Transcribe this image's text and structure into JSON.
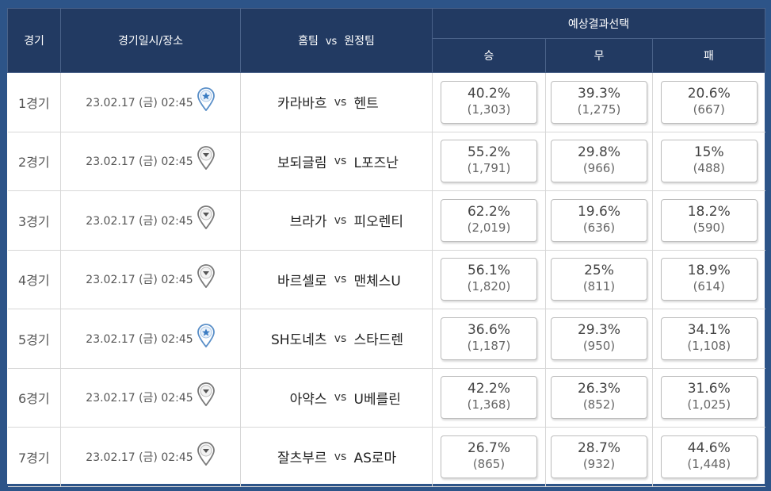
{
  "header": {
    "game": "경기",
    "datetime": "경기일시/장소",
    "home": "홈팀",
    "vs": "vs",
    "away": "원정팀",
    "prediction": "예상결과선택",
    "win": "승",
    "draw": "무",
    "loss": "패"
  },
  "colors": {
    "background": "#2d5488",
    "header_bg": "#223a62",
    "pin_active": "#4a8fd0",
    "pin_inactive": "#7a7a7a"
  },
  "rows": [
    {
      "game": "1경기",
      "datetime": "23.02.17 (금) 02:45",
      "pin": "location-star-pin-icon",
      "home": "카라바흐",
      "vs": "vs",
      "away": "헨트",
      "win": {
        "pct": "40.2%",
        "count": "(1,303)"
      },
      "draw": {
        "pct": "39.3%",
        "count": "(1,275)"
      },
      "loss": {
        "pct": "20.6%",
        "count": "(667)"
      }
    },
    {
      "game": "2경기",
      "datetime": "23.02.17 (금) 02:45",
      "pin": "location-pin-icon",
      "home": "보되글림",
      "vs": "vs",
      "away": "L포즈난",
      "win": {
        "pct": "55.2%",
        "count": "(1,791)"
      },
      "draw": {
        "pct": "29.8%",
        "count": "(966)"
      },
      "loss": {
        "pct": "15%",
        "count": "(488)"
      }
    },
    {
      "game": "3경기",
      "datetime": "23.02.17 (금) 02:45",
      "pin": "location-pin-icon",
      "home": "브라가",
      "vs": "vs",
      "away": "피오렌티",
      "win": {
        "pct": "62.2%",
        "count": "(2,019)"
      },
      "draw": {
        "pct": "19.6%",
        "count": "(636)"
      },
      "loss": {
        "pct": "18.2%",
        "count": "(590)"
      }
    },
    {
      "game": "4경기",
      "datetime": "23.02.17 (금) 02:45",
      "pin": "location-pin-icon",
      "home": "바르셀로",
      "vs": "vs",
      "away": "맨체스U",
      "win": {
        "pct": "56.1%",
        "count": "(1,820)"
      },
      "draw": {
        "pct": "25%",
        "count": "(811)"
      },
      "loss": {
        "pct": "18.9%",
        "count": "(614)"
      }
    },
    {
      "game": "5경기",
      "datetime": "23.02.17 (금) 02:45",
      "pin": "location-star-pin-icon",
      "home": "SH도네츠",
      "vs": "vs",
      "away": "스타드렌",
      "win": {
        "pct": "36.6%",
        "count": "(1,187)"
      },
      "draw": {
        "pct": "29.3%",
        "count": "(950)"
      },
      "loss": {
        "pct": "34.1%",
        "count": "(1,108)"
      }
    },
    {
      "game": "6경기",
      "datetime": "23.02.17 (금) 02:45",
      "pin": "location-pin-icon",
      "home": "아약스",
      "vs": "vs",
      "away": "U베를린",
      "win": {
        "pct": "42.2%",
        "count": "(1,368)"
      },
      "draw": {
        "pct": "26.3%",
        "count": "(852)"
      },
      "loss": {
        "pct": "31.6%",
        "count": "(1,025)"
      }
    },
    {
      "game": "7경기",
      "datetime": "23.02.17 (금) 02:45",
      "pin": "location-pin-icon",
      "home": "잘츠부르",
      "vs": "vs",
      "away": "AS로마",
      "win": {
        "pct": "26.7%",
        "count": "(865)"
      },
      "draw": {
        "pct": "28.7%",
        "count": "(932)"
      },
      "loss": {
        "pct": "44.6%",
        "count": "(1,448)"
      }
    }
  ]
}
